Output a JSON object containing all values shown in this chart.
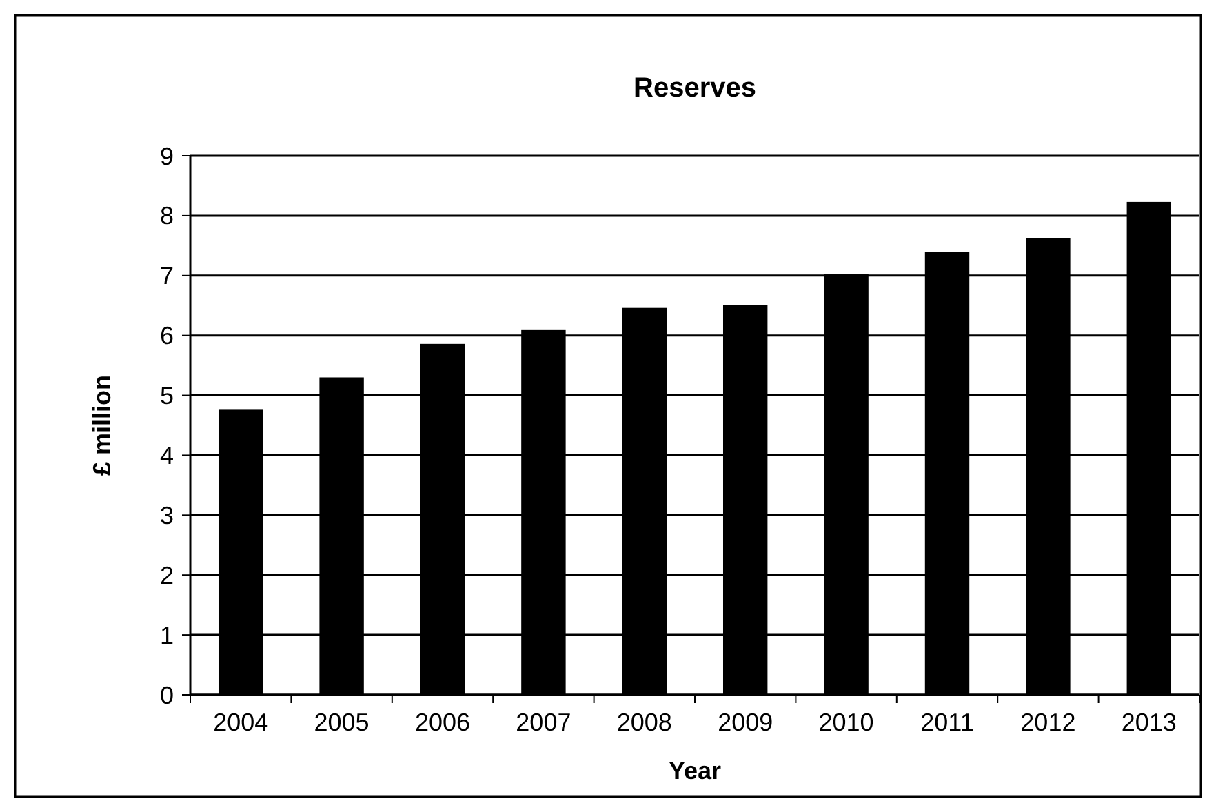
{
  "chart_data": {
    "type": "bar",
    "title": "Reserves",
    "xlabel": "Year",
    "ylabel": "£ million",
    "categories": [
      "2004",
      "2005",
      "2006",
      "2007",
      "2008",
      "2009",
      "2010",
      "2011",
      "2012",
      "2013"
    ],
    "values": [
      4.76,
      5.3,
      5.86,
      6.09,
      6.46,
      6.51,
      7.02,
      7.39,
      7.63,
      8.23
    ],
    "color": "#000000",
    "ylim": [
      0,
      9
    ],
    "yticks": [
      0,
      1,
      2,
      3,
      4,
      5,
      6,
      7,
      8,
      9
    ],
    "grid": "y"
  }
}
